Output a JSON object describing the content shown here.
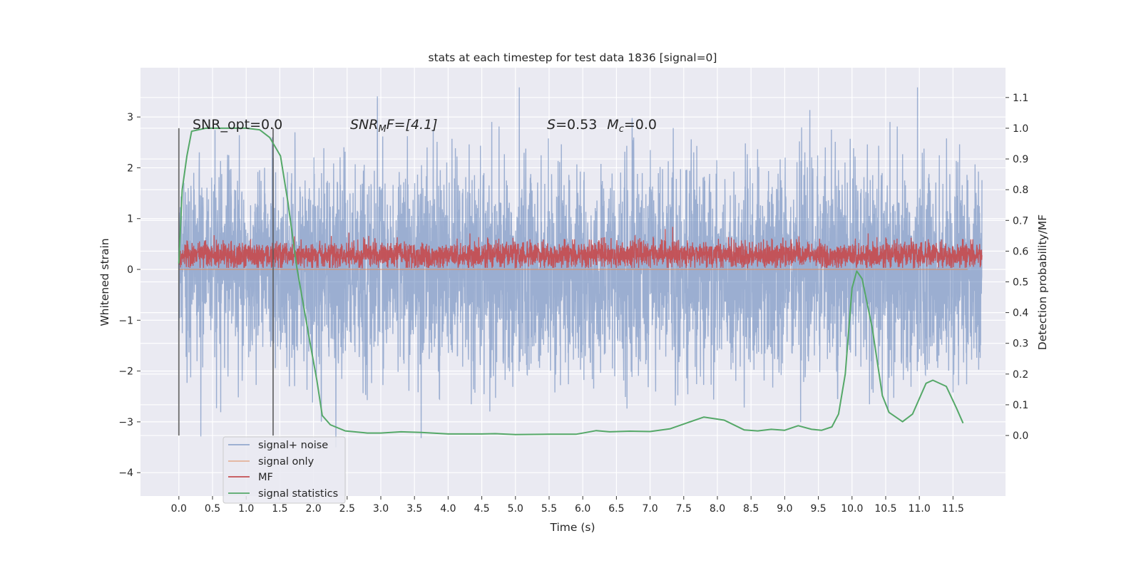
{
  "chart_data": {
    "type": "line",
    "title": "stats at each timestep for test data 1836 [signal=0]",
    "xlabel": "Time (s)",
    "ylabel": "Whitened strain",
    "ylabel_right": "Detection probability/MF",
    "xlim": [
      -0.57,
      12.28
    ],
    "ylim": [
      -4.46,
      3.97
    ],
    "ylim_right": [
      -0.197,
      1.197
    ],
    "x_ticks": [
      "0.0",
      "0.5",
      "1.0",
      "1.5",
      "2.0",
      "2.5",
      "3.0",
      "3.5",
      "4.0",
      "4.5",
      "5.0",
      "5.5",
      "6.0",
      "6.5",
      "7.0",
      "7.5",
      "8.0",
      "8.5",
      "9.0",
      "9.5",
      "10.0",
      "10.5",
      "11.0",
      "11.5"
    ],
    "y_ticks": [
      "−4",
      "−3",
      "−2",
      "−1",
      "0",
      "1",
      "2",
      "3"
    ],
    "y_ticks_right": [
      "0.0",
      "0.1",
      "0.2",
      "0.3",
      "0.4",
      "0.5",
      "0.6",
      "0.7",
      "0.8",
      "0.9",
      "1.0",
      "1.1"
    ],
    "grid": true,
    "legend_position": "bottom-left",
    "colors": {
      "background": "#eaeaf2",
      "signal_noise": "#4c72b0",
      "signal_only": "#dd8452",
      "mf": "#c44e52",
      "statistics": "#55a868",
      "vlines": "#555555"
    },
    "annotations": {
      "snr_opt": "SNR_opt=0.0",
      "snr_mf_sym": "SNR",
      "snr_mf_sub": "M",
      "snr_mf_rest": "F=[4.1]",
      "s_sym": "S",
      "s_val": "=0.53",
      "mc_sym": "M",
      "mc_sub": "c",
      "mc_val": "=0.0"
    },
    "vertical_lines_x": [
      0.0,
      1.4
    ],
    "series": [
      {
        "name": "signal+ noise",
        "axis": "left",
        "approx_range": [
          -3.5,
          3.6
        ]
      },
      {
        "name": "signal only",
        "axis": "left",
        "constant": 0.0
      },
      {
        "name": "MF",
        "axis": "left",
        "approx_range": [
          0.03,
          0.95
        ]
      },
      {
        "name": "signal statistics",
        "axis": "right",
        "x": [
          0.0,
          0.05,
          0.12,
          0.19,
          0.4,
          1.0,
          1.2,
          1.35,
          1.51,
          1.62,
          1.75,
          1.95,
          2.05,
          2.13,
          2.25,
          2.47,
          2.8,
          3.0,
          3.3,
          3.6,
          4.0,
          4.5,
          4.7,
          5.0,
          5.5,
          5.9,
          6.05,
          6.2,
          6.4,
          6.7,
          7.0,
          7.3,
          7.6,
          7.8,
          8.1,
          8.4,
          8.6,
          8.8,
          9.0,
          9.2,
          9.4,
          9.55,
          9.7,
          9.8,
          9.9,
          10.0,
          10.07,
          10.15,
          10.3,
          10.45,
          10.55,
          10.75,
          10.9,
          11.1,
          11.2,
          11.4,
          11.55,
          11.65
        ],
        "y": [
          0.56,
          0.8,
          0.91,
          0.99,
          1.0,
          1.0,
          0.995,
          0.97,
          0.91,
          0.76,
          0.55,
          0.3,
          0.18,
          0.065,
          0.035,
          0.015,
          0.008,
          0.008,
          0.012,
          0.01,
          0.005,
          0.005,
          0.006,
          0.003,
          0.004,
          0.004,
          0.01,
          0.016,
          0.012,
          0.014,
          0.013,
          0.022,
          0.045,
          0.06,
          0.05,
          0.018,
          0.015,
          0.02,
          0.017,
          0.032,
          0.02,
          0.017,
          0.028,
          0.07,
          0.2,
          0.48,
          0.535,
          0.51,
          0.35,
          0.13,
          0.075,
          0.045,
          0.07,
          0.17,
          0.18,
          0.16,
          0.09,
          0.04
        ]
      }
    ]
  },
  "legend": [
    "signal+ noise",
    "signal only",
    "MF",
    "signal statistics"
  ]
}
